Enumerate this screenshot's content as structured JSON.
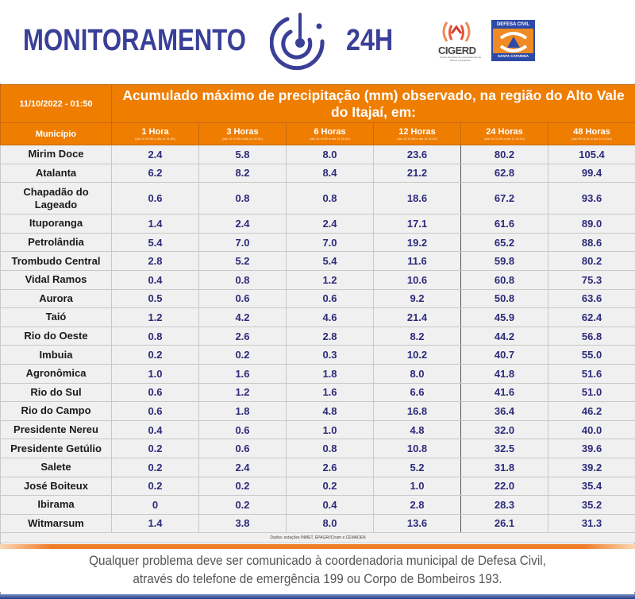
{
  "header": {
    "brand_left": "MONITORAMENTO",
    "brand_right": "24H",
    "logo_icon": "radar-icon",
    "partner_logos": [
      {
        "name": "CIGERD",
        "subtitle": "Centro Integrado de Gerenciamento de Riscos e Desastres",
        "icon": "signal-waves-icon"
      },
      {
        "name_top": "DEFESA CIVIL",
        "name_bottom": "SANTA CATARINA",
        "icon": "defesa-civil-emblem-icon"
      }
    ]
  },
  "table": {
    "datetime": "11/10/2022 - 01:50",
    "title": "Acumulado máximo de precipitação (mm) observado, na região do Alto Vale do Itajaí, em:",
    "col_municipio": "Município",
    "columns": [
      {
        "label": "1 Hora",
        "range": "(dia 11 00:50 a dia 11 01:50)"
      },
      {
        "label": "3 Horas",
        "range": "(dia 10 22:50 a dia 11 01:50)"
      },
      {
        "label": "6 Horas",
        "range": "(dia 10 19:50 a dia 11 01:50)"
      },
      {
        "label": "12 Horas",
        "range": "(dia 10 13:50 a dia 11 01:50)"
      },
      {
        "label": "24 Horas",
        "range": "(dia 10 01:50 a dia 11 01:50)"
      },
      {
        "label": "48 Horas",
        "range": "(dia 09 01:50 a dia 11 01:50)"
      }
    ],
    "rows": [
      {
        "municipio": "Mirim Doce",
        "v": [
          "2.4",
          "5.8",
          "8.0",
          "23.6",
          "80.2",
          "105.4"
        ]
      },
      {
        "municipio": "Atalanta",
        "v": [
          "6.2",
          "8.2",
          "8.4",
          "21.2",
          "62.8",
          "99.4"
        ]
      },
      {
        "municipio": "Chapadão do Lageado",
        "v": [
          "0.6",
          "0.8",
          "0.8",
          "18.6",
          "67.2",
          "93.6"
        ]
      },
      {
        "municipio": "Ituporanga",
        "v": [
          "1.4",
          "2.4",
          "2.4",
          "17.1",
          "61.6",
          "89.0"
        ]
      },
      {
        "municipio": "Petrolândia",
        "v": [
          "5.4",
          "7.0",
          "7.0",
          "19.2",
          "65.2",
          "88.6"
        ]
      },
      {
        "municipio": "Trombudo Central",
        "v": [
          "2.8",
          "5.2",
          "5.4",
          "11.6",
          "59.8",
          "80.2"
        ]
      },
      {
        "municipio": "Vidal Ramos",
        "v": [
          "0.4",
          "0.8",
          "1.2",
          "10.6",
          "60.8",
          "75.3"
        ]
      },
      {
        "municipio": "Aurora",
        "v": [
          "0.5",
          "0.6",
          "0.6",
          "9.2",
          "50.8",
          "63.6"
        ]
      },
      {
        "municipio": "Taió",
        "v": [
          "1.2",
          "4.2",
          "4.6",
          "21.4",
          "45.9",
          "62.4"
        ]
      },
      {
        "municipio": "Rio do Oeste",
        "v": [
          "0.8",
          "2.6",
          "2.8",
          "8.2",
          "44.2",
          "56.8"
        ]
      },
      {
        "municipio": "Imbuia",
        "v": [
          "0.2",
          "0.2",
          "0.3",
          "10.2",
          "40.7",
          "55.0"
        ]
      },
      {
        "municipio": "Agronômica",
        "v": [
          "1.0",
          "1.6",
          "1.8",
          "8.0",
          "41.8",
          "51.6"
        ]
      },
      {
        "municipio": "Rio do Sul",
        "v": [
          "0.6",
          "1.2",
          "1.6",
          "6.6",
          "41.6",
          "51.0"
        ]
      },
      {
        "municipio": "Rio do Campo",
        "v": [
          "0.6",
          "1.8",
          "4.8",
          "16.8",
          "36.4",
          "46.2"
        ]
      },
      {
        "municipio": "Presidente Nereu",
        "v": [
          "0.4",
          "0.6",
          "1.0",
          "4.8",
          "32.0",
          "40.0"
        ]
      },
      {
        "municipio": "Presidente Getúlio",
        "v": [
          "0.2",
          "0.6",
          "0.8",
          "10.8",
          "32.5",
          "39.6"
        ]
      },
      {
        "municipio": "Salete",
        "v": [
          "0.2",
          "2.4",
          "2.6",
          "5.2",
          "31.8",
          "39.2"
        ]
      },
      {
        "municipio": "José Boiteux",
        "v": [
          "0.2",
          "0.2",
          "0.2",
          "1.0",
          "22.0",
          "35.4"
        ]
      },
      {
        "municipio": "Ibirama",
        "v": [
          "0",
          "0.2",
          "0.4",
          "2.8",
          "28.3",
          "35.2"
        ]
      },
      {
        "municipio": "Witmarsum",
        "v": [
          "1.4",
          "3.8",
          "8.0",
          "13.6",
          "26.1",
          "31.3"
        ]
      }
    ],
    "source": "Dados: estações INMET, EPAGRI/Ciram e CEMADEN"
  },
  "footer": {
    "line1": "Qualquer problema deve ser comunicado à coordenadoria municipal de Defesa Civil,",
    "line2": "através do telefone de emergência 199 ou Corpo de Bombeiros 193."
  },
  "colors": {
    "brand_blue": "#3a3f98",
    "header_orange": "#ef7d00",
    "value_text": "#2d2a7a",
    "row_bg": "#f0f0f0"
  }
}
